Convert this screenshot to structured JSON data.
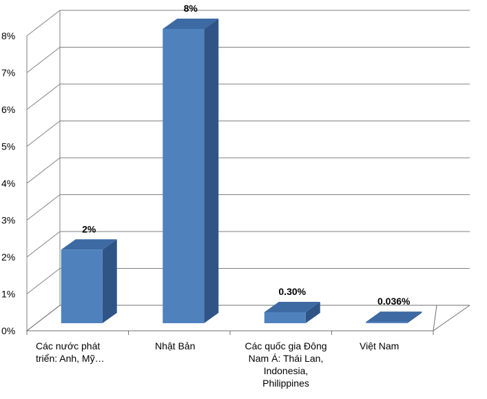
{
  "chart_data": {
    "type": "bar",
    "style": "3d-column",
    "categories": [
      "Các nước phát\ntriển: Anh, Mỹ…",
      "Nhật Bản",
      "Các quốc gia Đông\nNam Á: Thái Lan,\nIndonesia,\nPhilippines",
      "Việt Nam"
    ],
    "values": [
      2,
      8,
      0.3,
      0.036
    ],
    "data_labels": [
      "2%",
      "8%",
      "0.30%",
      "0.036%"
    ],
    "ylim": [
      0,
      8
    ],
    "yticks": [
      "0%",
      "1%",
      "2%",
      "3%",
      "4%",
      "5%",
      "6%",
      "7%",
      "8%"
    ],
    "grid": true,
    "legend": "none",
    "colors": {
      "bar_front": "#4F81BD",
      "bar_top": "#3E6AA3",
      "bar_side": "#2F5587",
      "grid": "#7F7F7F",
      "floor": "#6E6E6E"
    }
  }
}
